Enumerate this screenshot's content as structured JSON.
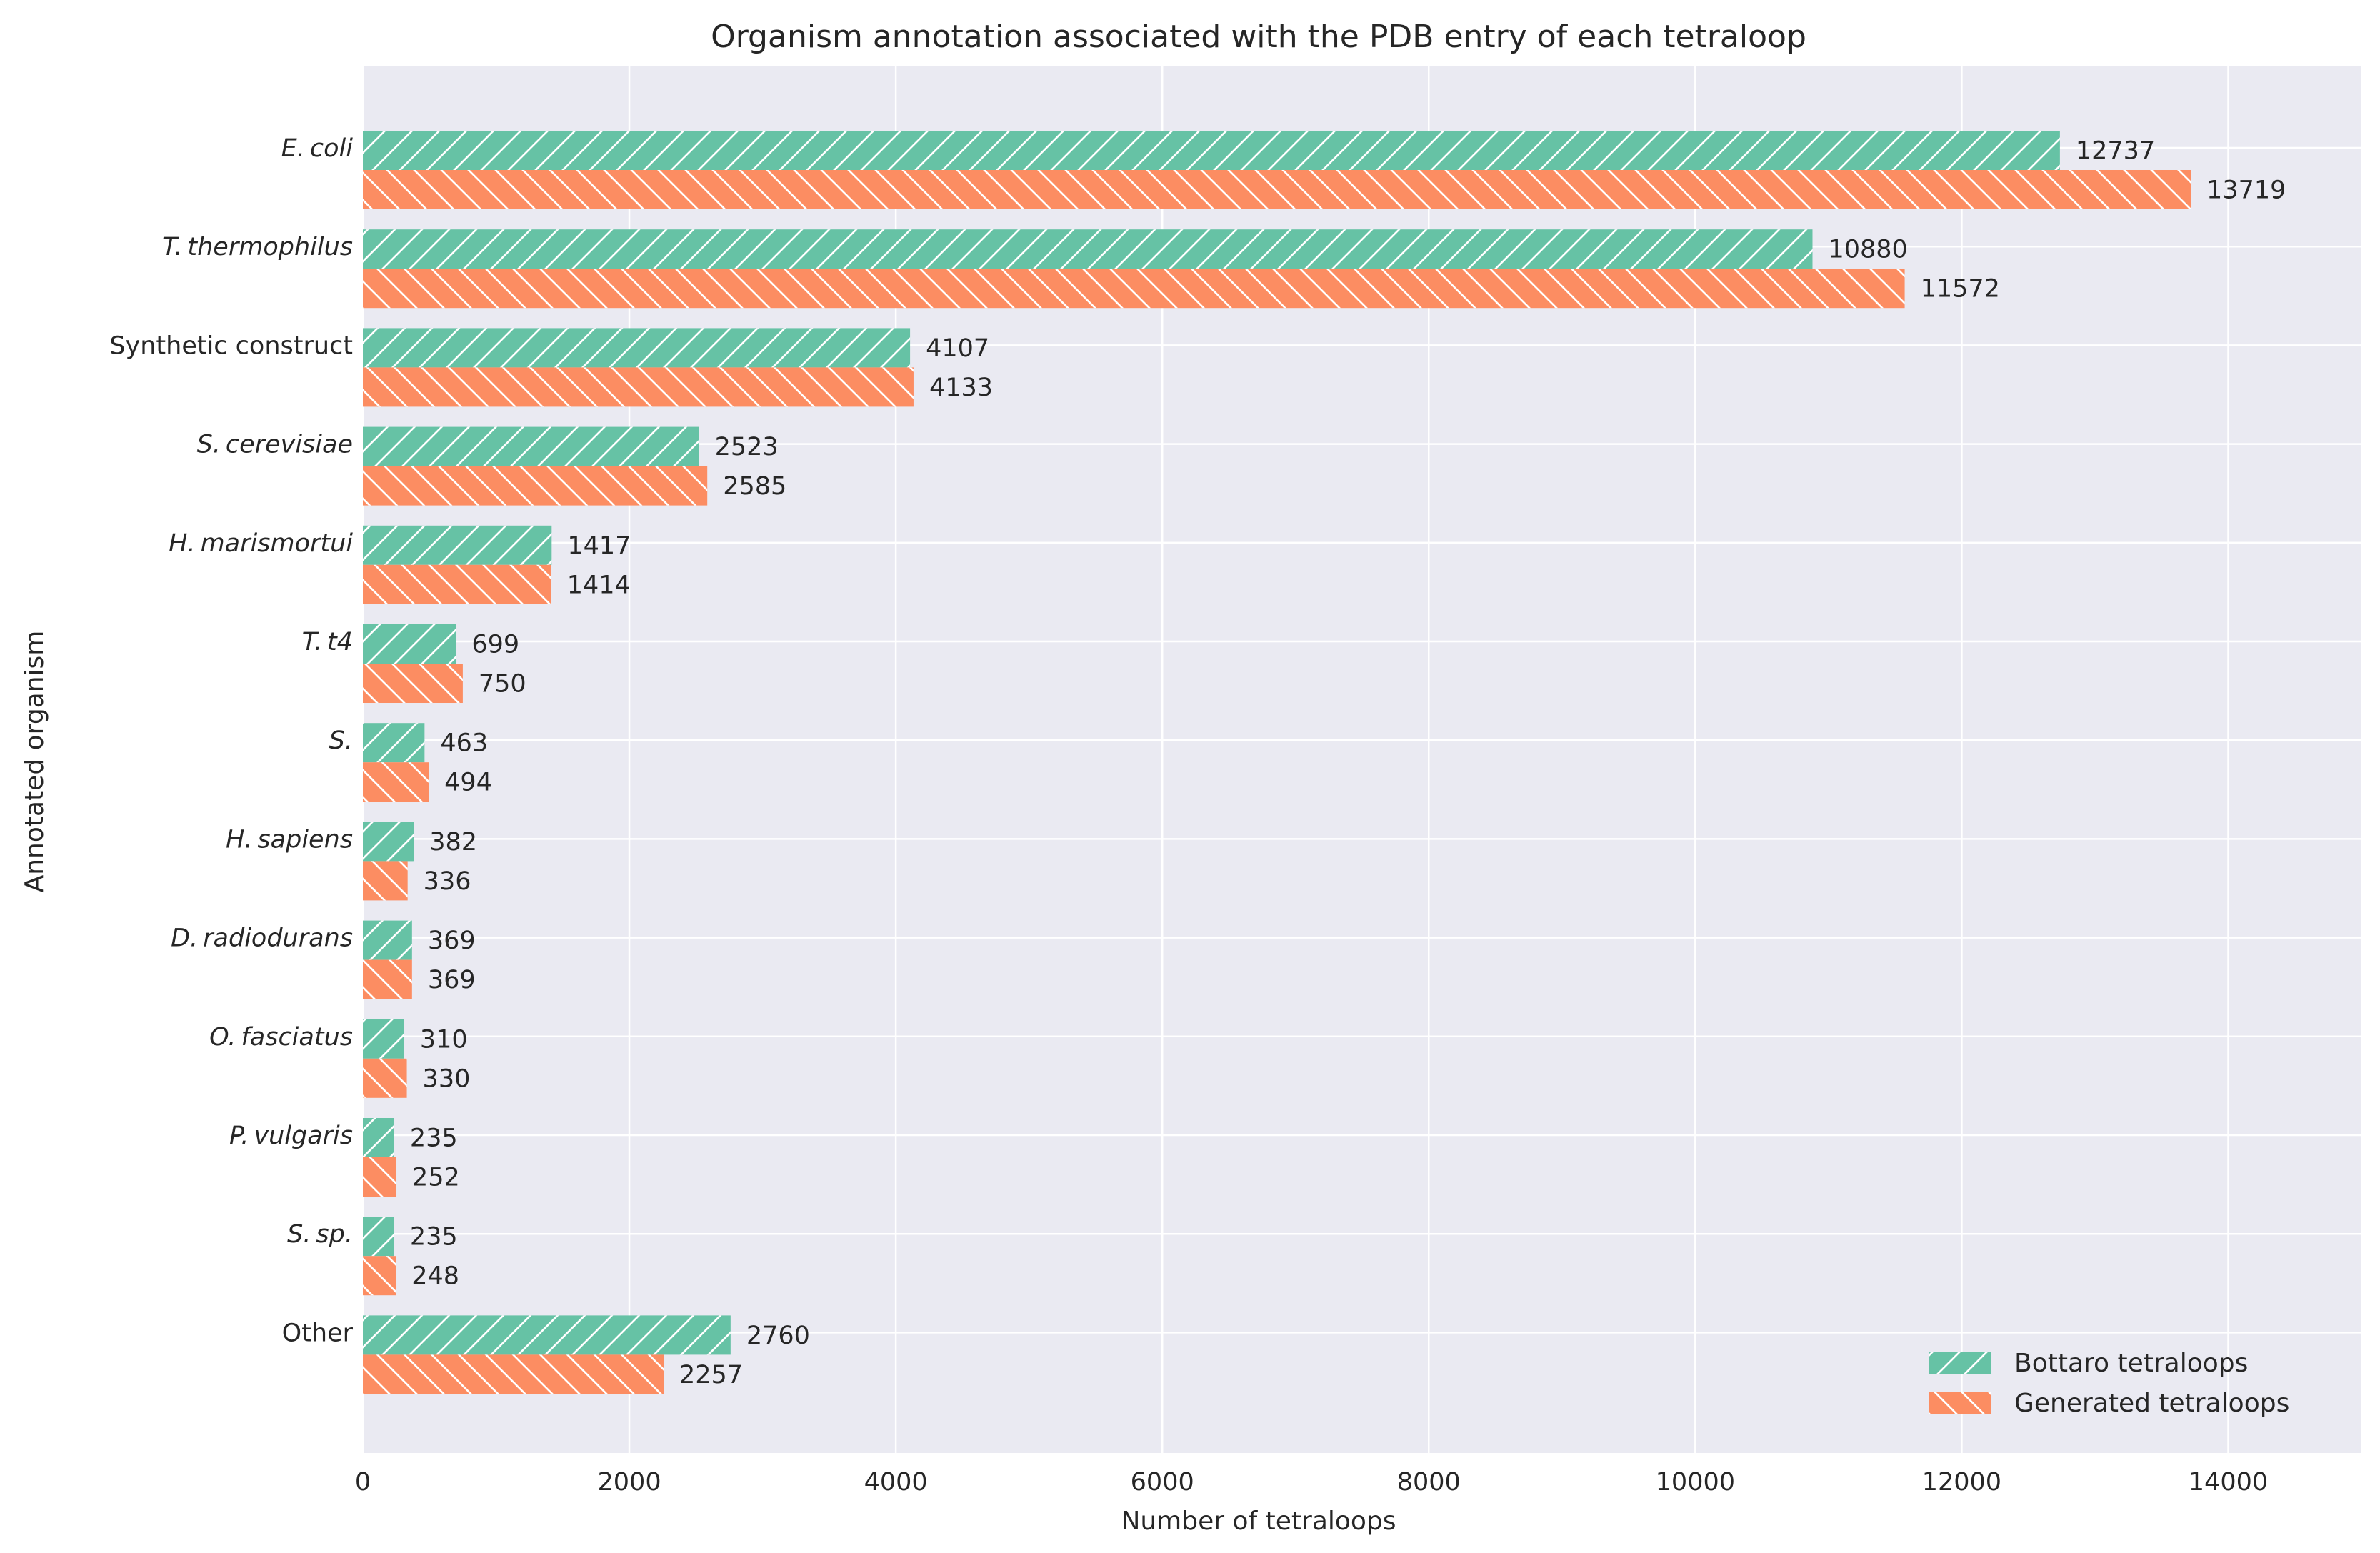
{
  "chart_data": {
    "type": "bar",
    "orientation": "horizontal",
    "title": "Organism annotation associated with the PDB entry of each tetraloop",
    "xlabel": "Number of tetraloops",
    "ylabel": "Annotated organism",
    "xlim": [
      0,
      15000
    ],
    "xticks": [
      "0",
      "2000",
      "4000",
      "6000",
      "8000",
      "10000",
      "12000",
      "14000"
    ],
    "xtick_values": [
      0,
      2000,
      4000,
      6000,
      8000,
      10000,
      12000,
      14000
    ],
    "grid": true,
    "legend_position": "bottom-right",
    "categories": [
      {
        "prefix": "E.",
        "name": "coli",
        "italic": true
      },
      {
        "prefix": "T.",
        "name": "thermophilus",
        "italic": true
      },
      {
        "prefix": "",
        "name": "Synthetic construct",
        "italic": false
      },
      {
        "prefix": "S.",
        "name": "cerevisiae",
        "italic": true
      },
      {
        "prefix": "H.",
        "name": "marismortui",
        "italic": true
      },
      {
        "prefix": "T.",
        "name": "t4",
        "italic": true
      },
      {
        "prefix": "S.",
        "name": "",
        "italic": true
      },
      {
        "prefix": "H.",
        "name": "sapiens",
        "italic": true
      },
      {
        "prefix": "D.",
        "name": "radiodurans",
        "italic": true
      },
      {
        "prefix": "O.",
        "name": "fasciatus",
        "italic": true
      },
      {
        "prefix": "P.",
        "name": "vulgaris",
        "italic": true
      },
      {
        "prefix": "S.",
        "name": "sp.",
        "italic": true
      },
      {
        "prefix": "",
        "name": "Other",
        "italic": false
      }
    ],
    "series": [
      {
        "name": "Bottaro tetraloops",
        "color": "#66c2a5",
        "hatch": "forward",
        "values": [
          12737,
          10880,
          4107,
          2523,
          1417,
          699,
          463,
          382,
          369,
          310,
          235,
          235,
          2760
        ],
        "labels": [
          "12737",
          "10880",
          "4107",
          "2523",
          "1417",
          "699",
          "463",
          "382",
          "369",
          "310",
          "235",
          "235",
          "2760"
        ]
      },
      {
        "name": "Generated tetraloops",
        "color": "#fc8d62",
        "hatch": "backward",
        "values": [
          13719,
          11572,
          4133,
          2585,
          1414,
          750,
          494,
          336,
          369,
          330,
          252,
          248,
          2257
        ],
        "labels": [
          "13719",
          "11572",
          "4133",
          "2585",
          "1414",
          "750",
          "494",
          "336",
          "369",
          "330",
          "252",
          "248",
          "2257"
        ]
      }
    ],
    "colors": {
      "plot_background": "#eaeaf2",
      "grid": "#ffffff",
      "text": "#262626"
    }
  }
}
